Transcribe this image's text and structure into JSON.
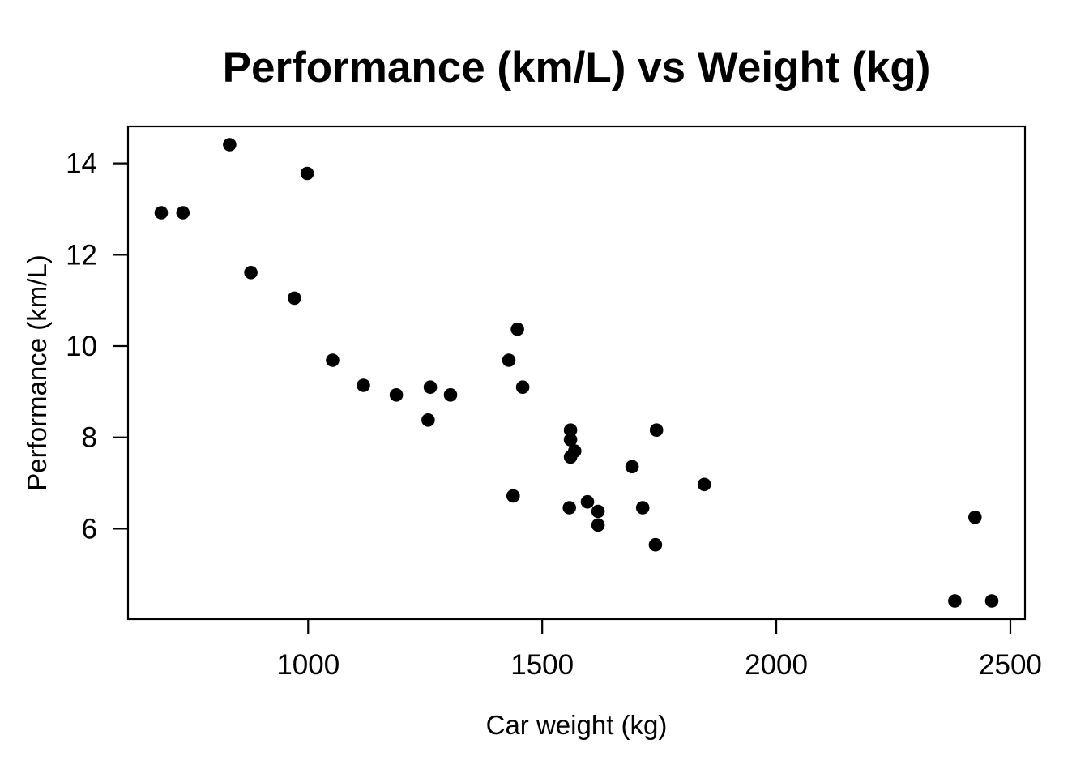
{
  "chart_data": {
    "type": "scatter",
    "title": "Performance (km/L) vs Weight (kg)",
    "xlabel": "Car weight (kg)",
    "ylabel": "Performance (km/L)",
    "xlim": [
      615.3,
      2531.2
    ],
    "ylim": [
      4.02,
      14.81
    ],
    "xticks": [
      1000,
      1500,
      2000,
      2500
    ],
    "yticks": [
      6,
      8,
      10,
      12,
      14
    ],
    "grid": false,
    "legend": null,
    "marker": {
      "shape": "filled-circle",
      "color": "#000000",
      "radius_px": 8.3
    },
    "points": [
      [
        1188.4,
        8.93
      ],
      [
        1304.1,
        8.93
      ],
      [
        1052.3,
        9.69
      ],
      [
        1458.3,
        9.1
      ],
      [
        1560.4,
        7.95
      ],
      [
        1569.4,
        7.7
      ],
      [
        1619.3,
        6.08
      ],
      [
        1447.0,
        10.37
      ],
      [
        1428.8,
        9.69
      ],
      [
        1560.4,
        8.16
      ],
      [
        1560.4,
        7.57
      ],
      [
        1846.1,
        6.97
      ],
      [
        1691.9,
        7.36
      ],
      [
        1714.6,
        6.46
      ],
      [
        2381.4,
        4.42
      ],
      [
        2460.3,
        4.42
      ],
      [
        2424.4,
        6.25
      ],
      [
        997.9,
        13.78
      ],
      [
        732.6,
        12.92
      ],
      [
        832.3,
        14.41
      ],
      [
        1118.1,
        9.14
      ],
      [
        1596.6,
        6.59
      ],
      [
        1558.1,
        6.46
      ],
      [
        1741.8,
        5.65
      ],
      [
        1744.1,
        8.16
      ],
      [
        877.7,
        11.61
      ],
      [
        970.7,
        11.05
      ],
      [
        686.3,
        12.92
      ],
      [
        1437.9,
        6.72
      ],
      [
        1256.4,
        8.38
      ],
      [
        1619.3,
        6.38
      ],
      [
        1261.0,
        9.1
      ]
    ]
  },
  "colors": {
    "background": "#ffffff",
    "foreground": "#000000"
  }
}
